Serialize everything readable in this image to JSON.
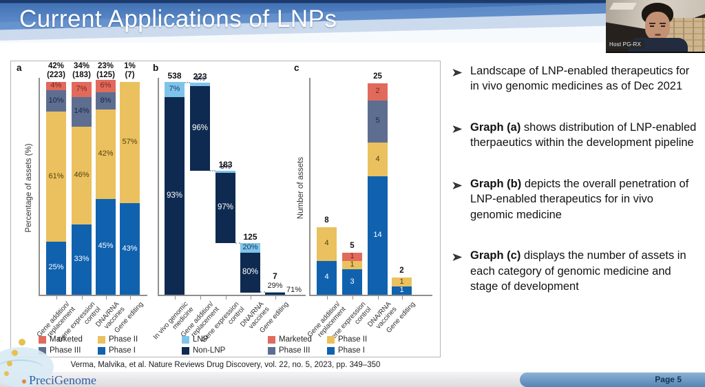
{
  "header": {
    "title": "Current Applications of LNPs"
  },
  "webcam": {
    "label": "Host PG-RX"
  },
  "figure": {
    "citation": "Verma, Malvika, et al.  Nature Reviews Drug Discovery, vol. 22, no. 5, 2023, pp. 349–350",
    "legend_ac": [
      {
        "label": "Marketed",
        "key": "marketed"
      },
      {
        "label": "Phase II",
        "key": "phase2"
      },
      {
        "label": "Phase III",
        "key": "phase3"
      },
      {
        "label": "Phase I",
        "key": "phase1"
      }
    ],
    "legend_b": [
      {
        "label": "LNP",
        "key": "lnp"
      },
      {
        "label": "Non-LNP",
        "key": "nonlnp"
      }
    ]
  },
  "colors": {
    "marketed": "#e16a5c",
    "phase2": "#eac15e",
    "phase3": "#5d6e90",
    "phase1": "#1062af",
    "lnp": "#7ec4ea",
    "nonlnp": "#0f2a50",
    "axis": "#8f8f8f",
    "logo_blue": "#2e5fa3"
  },
  "chart_data": [
    {
      "type": "bar",
      "panel": "a",
      "stacked": true,
      "unit": "percent",
      "ylabel": "Percentage of assets (%)",
      "ylim": [
        0,
        100
      ],
      "legend_position": "bottom",
      "categories": [
        "Gene addition/\nreplacement",
        "Gene expression\ncontrol",
        "DNA/RNA\nvaccines",
        "Gene editing"
      ],
      "series": [
        {
          "name": "Phase I",
          "key": "phase1",
          "values": [
            25,
            33,
            45,
            43
          ]
        },
        {
          "name": "Phase II",
          "key": "phase2",
          "values": [
            61,
            46,
            42,
            57
          ]
        },
        {
          "name": "Phase III",
          "key": "phase3",
          "values": [
            10,
            14,
            8,
            0
          ]
        },
        {
          "name": "Marketed",
          "key": "marketed",
          "values": [
            4,
            7,
            6,
            0
          ]
        }
      ],
      "top_labels": [
        "42%|(223)",
        "34%|(183)",
        "23%|(125)",
        "1%|(7)"
      ]
    },
    {
      "type": "bar",
      "panel": "b",
      "variant": "cascade-breakdown",
      "legend_position": "bottom",
      "categories": [
        "In vivo genomic\nmedicine",
        "Gene addition/\nreplacement",
        "Gene expression\ncontrol",
        "DNA/RNA\nvaccines",
        "Gene editing"
      ],
      "totals": [
        538,
        223,
        183,
        125,
        7
      ],
      "series": [
        {
          "name": "LNP",
          "key": "lnp",
          "values_pct": [
            7,
            4,
            3,
            20,
            29
          ]
        },
        {
          "name": "Non-LNP",
          "key": "nonlnp",
          "values_pct": [
            93,
            96,
            97,
            80,
            71
          ]
        }
      ]
    },
    {
      "type": "bar",
      "panel": "c",
      "stacked": true,
      "unit": "count",
      "ylabel": "Number of assets",
      "ylim": [
        0,
        25
      ],
      "legend_position": "bottom",
      "categories": [
        "Gene addition/\nreplacement",
        "Gene expression\ncontrol",
        "DNA/RNA\nvaccines",
        "Gene editing"
      ],
      "series": [
        {
          "name": "Phase I",
          "key": "phase1",
          "values": [
            4,
            3,
            14,
            1
          ]
        },
        {
          "name": "Phase II",
          "key": "phase2",
          "values": [
            4,
            1,
            4,
            1
          ]
        },
        {
          "name": "Phase III",
          "key": "phase3",
          "values": [
            0,
            0,
            5,
            0
          ]
        },
        {
          "name": "Marketed",
          "key": "marketed",
          "values": [
            0,
            1,
            2,
            0
          ]
        }
      ],
      "totals": [
        8,
        5,
        25,
        2
      ]
    }
  ],
  "bullets": [
    {
      "lead": "",
      "text": "Landscape of LNP-enabled therapeutics for in vivo genomic medicines as of Dec 2021"
    },
    {
      "lead": "Graph (a)",
      "text": " shows distribution of LNP-enabled therpaeutics within the development pipeline"
    },
    {
      "lead": "Graph (b)",
      "text": " depicts the overall penetration of LNP-enabled therapeutics for in vivo genomic medicine"
    },
    {
      "lead": "Graph (c)",
      "text": " displays the number of assets in each category of genomic medicine and stage of development"
    }
  ],
  "footer": {
    "page_label": "Page 5",
    "logo_text": "PreciGenome"
  }
}
